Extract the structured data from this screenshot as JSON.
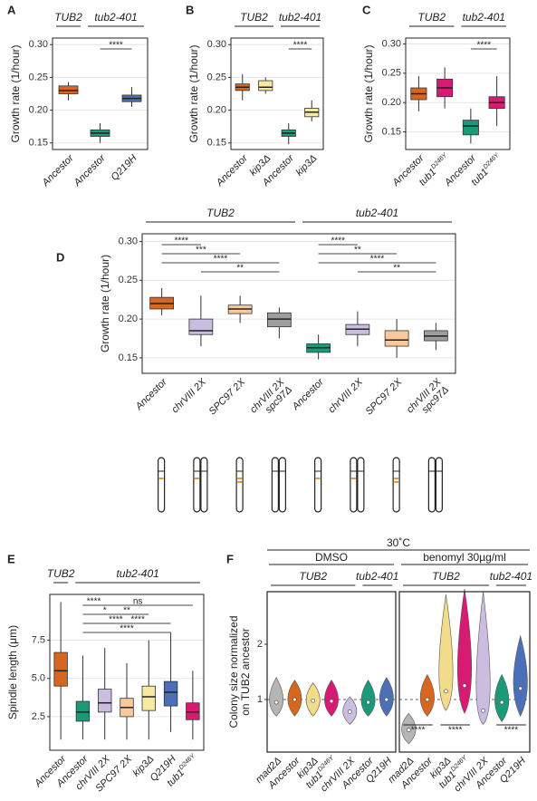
{
  "chart_data": [
    {
      "type": "box",
      "panel": "A",
      "ylabel": "Growth rate (1/hour)",
      "ylim": [
        0.14,
        0.31
      ],
      "yticks": [
        0.15,
        {
          "value": 0.2,
          "label": "0.20"
        },
        0.25,
        {
          "value": 0.3,
          "label": "0.30"
        }
      ],
      "grid": true,
      "groups": [
        {
          "label": "TUB2",
          "from": 0,
          "to": 0
        },
        {
          "label": "tub2-401",
          "from": 1,
          "to": 2
        }
      ],
      "categories": [
        "Ancestor",
        "Ancestor",
        "Q219H"
      ],
      "colors": [
        "#d9661f",
        "#1a9a78",
        "#4b70b8"
      ],
      "boxes": [
        {
          "min": 0.215,
          "q1": 0.225,
          "median": 0.23,
          "q3": 0.237,
          "max": 0.243
        },
        {
          "min": 0.15,
          "q1": 0.16,
          "median": 0.165,
          "q3": 0.17,
          "max": 0.18
        },
        {
          "min": 0.205,
          "q1": 0.213,
          "median": 0.218,
          "q3": 0.223,
          "max": 0.235
        }
      ],
      "significance": [
        {
          "from": 1,
          "to": 2,
          "label": "****"
        }
      ]
    },
    {
      "type": "box",
      "panel": "B",
      "ylabel": "Growth rate (1/hour)",
      "ylim": [
        0.14,
        0.31
      ],
      "yticks": [
        0.15,
        {
          "value": 0.2,
          "label": "0.20"
        },
        0.25,
        {
          "value": 0.3,
          "label": "0.30"
        }
      ],
      "grid": true,
      "groups": [
        {
          "label": "TUB2",
          "from": 0,
          "to": 1
        },
        {
          "label": "tub2-401",
          "from": 2,
          "to": 3
        }
      ],
      "categories": [
        "Ancestor",
        "kip3Δ",
        "Ancestor",
        "kip3Δ"
      ],
      "colors": [
        "#d9661f",
        "#f7eaa0",
        "#1a9a78",
        "#f7eaa0"
      ],
      "boxes": [
        {
          "min": 0.215,
          "q1": 0.23,
          "median": 0.235,
          "q3": 0.24,
          "max": 0.255
        },
        {
          "min": 0.225,
          "q1": 0.23,
          "median": 0.235,
          "q3": 0.245,
          "max": 0.25
        },
        {
          "min": 0.148,
          "q1": 0.16,
          "median": 0.165,
          "q3": 0.17,
          "max": 0.18
        },
        {
          "min": 0.183,
          "q1": 0.19,
          "median": 0.197,
          "q3": 0.203,
          "max": 0.215
        }
      ],
      "significance": [
        {
          "from": 2,
          "to": 3,
          "label": "****"
        }
      ]
    },
    {
      "type": "box",
      "panel": "C",
      "ylabel": "Growth rate (1/hour)",
      "ylim": [
        0.12,
        0.31
      ],
      "yticks": [
        0.15,
        {
          "value": 0.2,
          "label": "0.20"
        },
        0.25,
        {
          "value": 0.3,
          "label": "0.30"
        }
      ],
      "grid": true,
      "groups": [
        {
          "label": "TUB2",
          "from": 0,
          "to": 1
        },
        {
          "label": "tub2-401",
          "from": 2,
          "to": 3
        }
      ],
      "categories": [
        "Ancestor",
        {
          "name": "tub1",
          "superscript": "D246Y"
        },
        "Ancestor",
        {
          "name": "tub1",
          "superscript": "D246Y"
        }
      ],
      "colors": [
        "#d9661f",
        "#d81b72",
        "#1a9a78",
        "#d81b72"
      ],
      "boxes": [
        {
          "min": 0.185,
          "q1": 0.205,
          "median": 0.215,
          "q3": 0.225,
          "max": 0.245
        },
        {
          "min": 0.19,
          "q1": 0.21,
          "median": 0.225,
          "q3": 0.24,
          "max": 0.26
        },
        {
          "min": 0.13,
          "q1": 0.145,
          "median": 0.16,
          "q3": 0.17,
          "max": 0.19
        },
        {
          "min": 0.16,
          "q1": 0.19,
          "median": 0.2,
          "q3": 0.21,
          "max": 0.245
        }
      ],
      "significance": [
        {
          "from": 2,
          "to": 3,
          "label": "****"
        }
      ]
    },
    {
      "type": "box",
      "panel": "D",
      "ylabel": "Growth rate (1/hour)",
      "ylim": [
        0.13,
        0.31
      ],
      "yticks": [
        0.15,
        {
          "value": 0.2,
          "label": "0.20"
        },
        0.25,
        {
          "value": 0.3,
          "label": "0.30"
        }
      ],
      "grid": true,
      "groups": [
        {
          "label": "TUB2",
          "from": 0,
          "to": 3
        },
        {
          "label": "tub2-401",
          "from": 4,
          "to": 7
        }
      ],
      "categories": [
        "Ancestor",
        "chrVIII 2X",
        "SPC97 2X",
        {
          "lines": [
            "chrVIII 2X",
            "spc97Δ"
          ]
        },
        "Ancestor",
        "chrVIII 2X",
        "SPC97 2X",
        {
          "lines": [
            "chrVIII 2X",
            "spc97Δ"
          ]
        }
      ],
      "colors": [
        "#d9661f",
        "#cbbde0",
        "#f8c99a",
        "#9e9e9e",
        "#1a9a78",
        "#cbbde0",
        "#f8c99a",
        "#9e9e9e"
      ],
      "boxes": [
        {
          "min": 0.205,
          "q1": 0.213,
          "median": 0.22,
          "q3": 0.228,
          "max": 0.24
        },
        {
          "min": 0.165,
          "q1": 0.18,
          "median": 0.185,
          "q3": 0.2,
          "max": 0.23
        },
        {
          "min": 0.195,
          "q1": 0.207,
          "median": 0.213,
          "q3": 0.218,
          "max": 0.23
        },
        {
          "min": 0.175,
          "q1": 0.19,
          "median": 0.2,
          "q3": 0.208,
          "max": 0.215
        },
        {
          "min": 0.148,
          "q1": 0.157,
          "median": 0.163,
          "q3": 0.168,
          "max": 0.18
        },
        {
          "min": 0.165,
          "q1": 0.18,
          "median": 0.187,
          "q3": 0.193,
          "max": 0.21
        },
        {
          "min": 0.15,
          "q1": 0.165,
          "median": 0.173,
          "q3": 0.185,
          "max": 0.2
        },
        {
          "min": 0.16,
          "q1": 0.172,
          "median": 0.178,
          "q3": 0.185,
          "max": 0.195
        }
      ],
      "significance": [
        {
          "from": 0,
          "to": 1,
          "label": "****"
        },
        {
          "from": 0,
          "to": 2,
          "label": "***"
        },
        {
          "from": 0,
          "to": 3,
          "label": "****"
        },
        {
          "from": 1,
          "to": 3,
          "label": "**"
        },
        {
          "from": 4,
          "to": 5,
          "label": "****"
        },
        {
          "from": 4,
          "to": 6,
          "label": "**"
        },
        {
          "from": 4,
          "to": 7,
          "label": "****"
        },
        {
          "from": 5,
          "to": 7,
          "label": "**"
        }
      ]
    },
    {
      "type": "box",
      "panel": "E",
      "ylabel": "Spindle length (μm)",
      "ylim": [
        0.3,
        10.5
      ],
      "yticks": [
        2.5,
        {
          "value": 5,
          "label": "5.0"
        },
        7.5
      ],
      "grid": true,
      "groups": [
        {
          "label": "TUB2",
          "from": 0,
          "to": 0
        },
        {
          "label": "tub2-401",
          "from": 1,
          "to": 6
        }
      ],
      "categories": [
        "Ancestor",
        "Ancestor",
        "chrVIII 2X",
        "SPC97 2X",
        "kip3Δ",
        "Q219H",
        {
          "name": "tub1",
          "superscript": "D246Y"
        }
      ],
      "colors": [
        "#d9661f",
        "#1a9a78",
        "#cbbde0",
        "#f8c99a",
        "#f7eaa0",
        "#4b70b8",
        "#d81b72"
      ],
      "boxes": [
        {
          "min": 1,
          "q1": 4.5,
          "median": 5.5,
          "q3": 6.7,
          "max": 10
        },
        {
          "min": 1,
          "q1": 2.2,
          "median": 2.8,
          "q3": 3.5,
          "max": 6.5
        },
        {
          "min": 1,
          "q1": 2.8,
          "median": 3.4,
          "q3": 4.3,
          "max": 7
        },
        {
          "min": 1,
          "q1": 2.5,
          "median": 3.1,
          "q3": 3.7,
          "max": 6
        },
        {
          "min": 1,
          "q1": 2.9,
          "median": 3.8,
          "q3": 4.5,
          "max": 7.5
        },
        {
          "min": 1.5,
          "q1": 3.2,
          "median": 4.1,
          "q3": 4.8,
          "max": 8
        },
        {
          "min": 1,
          "q1": 2.3,
          "median": 2.8,
          "q3": 3.4,
          "max": 5.5
        }
      ],
      "significance": [
        {
          "from": 1,
          "to": 2,
          "label": "****"
        },
        {
          "from": 1,
          "to": 3,
          "label": "*"
        },
        {
          "from": 1,
          "to": 4,
          "label": "****"
        },
        {
          "from": 1,
          "to": 5,
          "label": "****"
        },
        {
          "from": 1,
          "to": 6,
          "label": "ns"
        },
        {
          "from": 2,
          "to": 4,
          "label": "**"
        },
        {
          "from": 2,
          "to": 5,
          "label": "****"
        }
      ]
    },
    {
      "type": "violin",
      "panel": "F",
      "title": "30˚C",
      "ylabel": [
        "Colony size normalized",
        "on TUB2 ancestor"
      ],
      "ylim": [
        0.05,
        2.95
      ],
      "yticks": [
        1,
        2
      ],
      "reference_line": 1,
      "groups": [
        {
          "label": "TUB2",
          "from": 0,
          "to": 4
        },
        {
          "label": "tub2-401",
          "from": 5,
          "to": 6
        }
      ],
      "categories": [
        "mad2Δ",
        "Ancestor",
        "kip3Δ",
        {
          "name": "tub1",
          "superscript": "D246Y"
        },
        "chrVIII 2X",
        "Ancestor",
        "Q219H"
      ],
      "colors": [
        "#b5b5b5",
        "#d9661f",
        "#f2dc8a",
        "#d81b72",
        "#cbbde0",
        "#1a9a78",
        "#4b70b8"
      ],
      "facets": [
        {
          "name": "DMSO",
          "min": [
            0.7,
            0.7,
            0.7,
            0.7,
            0.55,
            0.7,
            0.7
          ],
          "median": [
            0.95,
            1,
            0.98,
            0.97,
            0.78,
            0.95,
            1
          ],
          "max": [
            1.4,
            1.35,
            1.3,
            1.35,
            1.05,
            1.35,
            1.4
          ],
          "significance": []
        },
        {
          "name": "benomyl 30µg/ml",
          "min": [
            0.2,
            0.7,
            0.8,
            0.75,
            0.55,
            0.6,
            0.7
          ],
          "median": [
            0.45,
            1,
            1.15,
            1.25,
            0.8,
            0.95,
            1.2
          ],
          "max": [
            0.75,
            1.45,
            2.9,
            3.0,
            2.95,
            1.45,
            2.15
          ],
          "significance": [
            {
              "from": 0,
              "to": 1,
              "label": "****"
            },
            {
              "from": 2,
              "to": 3,
              "label": "****"
            },
            {
              "from": 5,
              "to": 6,
              "label": "****"
            }
          ]
        }
      ]
    }
  ]
}
